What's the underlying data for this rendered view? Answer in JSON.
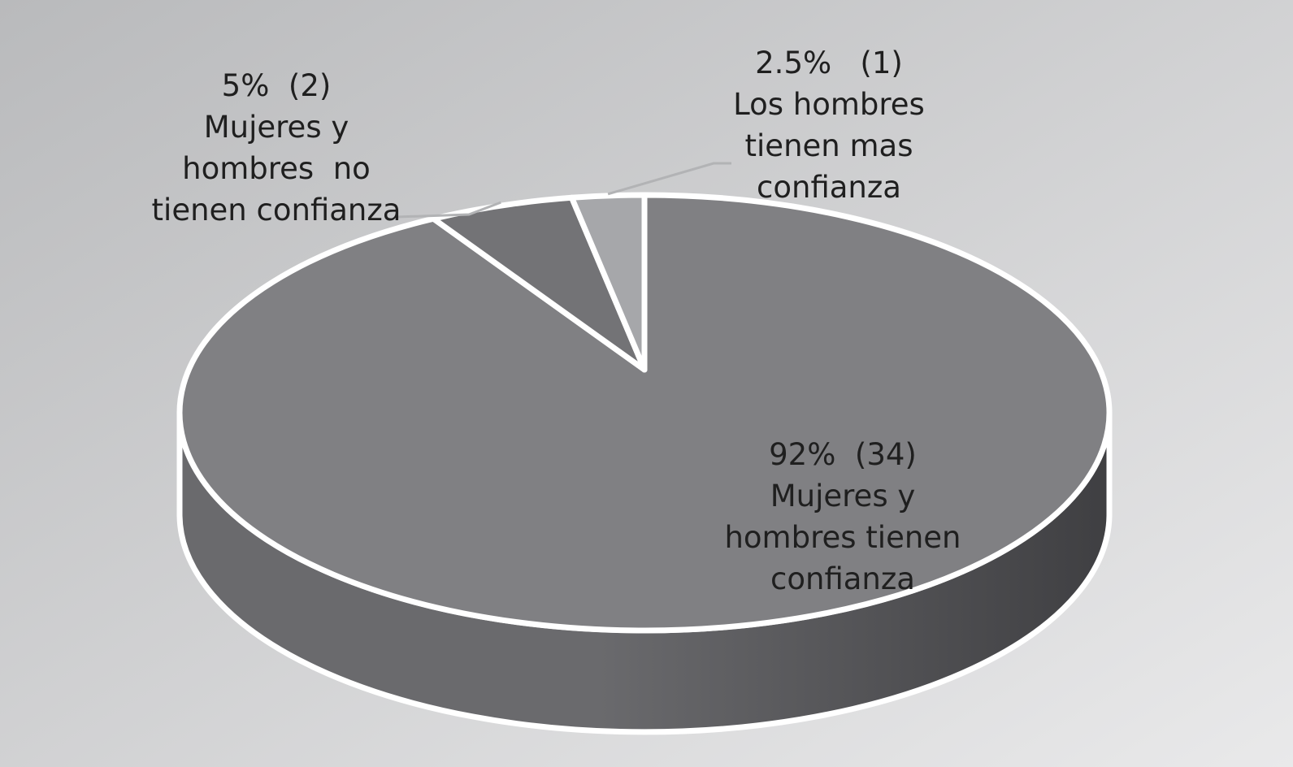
{
  "chart_data": {
    "type": "pie",
    "style": "3d",
    "slices": [
      {
        "percent": 92,
        "count": 34,
        "value": 92.5,
        "value_label": "92%  (34)",
        "label_lines": [
          "Mujeres y",
          "hombres tienen",
          "confianza"
        ],
        "color": "#808083"
      },
      {
        "percent": 5,
        "count": 2,
        "value": 5,
        "value_label": "5%  (2)",
        "label_lines": [
          "Mujeres y",
          "hombres  no",
          "tienen confianza"
        ],
        "color": "#737376"
      },
      {
        "percent": 2.5,
        "count": 1,
        "value": 2.5,
        "value_label": "2.5%   (1)",
        "label_lines": [
          "Los hombres",
          "tienen mas",
          "confianza"
        ],
        "color": "#a6a7aa"
      }
    ],
    "colors": {
      "background_top_left": "#b9babc",
      "background_bottom_right": "#e9e9ea",
      "side_light": "#6a6a6d",
      "side_dark": "#3f3f42",
      "slice_border": "#ffffff",
      "leader_line": "#b2b3b5"
    }
  }
}
